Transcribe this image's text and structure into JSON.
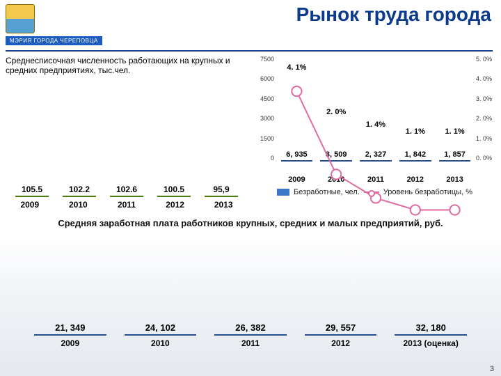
{
  "header": {
    "title": "Рынок труда города",
    "badge": "МЭРИЯ ГОРОДА ЧЕРЕПОВЦА",
    "title_color": "#0b3b8a",
    "rule_color": "#1b3f8a"
  },
  "employees_chart": {
    "caption": "Среднесписочная численность работающих на крупных и средних предприятиях, тыс.чел.",
    "type": "bar",
    "categories": [
      "2009",
      "2010",
      "2011",
      "2012",
      "2013"
    ],
    "values": [
      105.5,
      102.2,
      102.6,
      100.5,
      95.9
    ],
    "value_labels": [
      "105.5",
      "102.2",
      "102.6",
      "100.5",
      "95,9"
    ],
    "ylim": [
      90,
      106
    ],
    "bar_fill": "#6aa521",
    "bar_border": "#4c7d12",
    "label_fontsize": 12,
    "label_weight": 700
  },
  "unemployment_chart": {
    "type": "bar+line",
    "categories": [
      "2009",
      "2010",
      "2011",
      "2012",
      "2013"
    ],
    "bars_values": [
      6935,
      3509,
      2327,
      1842,
      1857
    ],
    "bars_labels": [
      "6, 935",
      "3, 509",
      "2, 327",
      "1, 842",
      "1, 857"
    ],
    "line_values_pct": [
      4.1,
      2.0,
      1.4,
      1.1,
      1.1
    ],
    "line_labels": [
      "4. 1%",
      "2. 0%",
      "1. 4%",
      "1. 1%",
      "1. 1%"
    ],
    "y_left_ticks": [
      "7500",
      "6000",
      "4500",
      "3000",
      "1500",
      "0"
    ],
    "y_right_ticks": [
      "5. 0%",
      "4. 0%",
      "3. 0%",
      "2. 0%",
      "1. 0%",
      "0. 0%"
    ],
    "y_left_lim": [
      0,
      7500
    ],
    "y_right_lim": [
      0,
      5.0
    ],
    "bar_fill": "#3b77c9",
    "bar_border": "#274f8a",
    "line_color": "#e06aa0",
    "marker_fill": "#ffffff",
    "legend_bars": "Безработные, чел.",
    "legend_line": "Уровень безработицы, %"
  },
  "wage_chart": {
    "caption": "Средняя заработная плата работников крупных, средних и малых предприятий, руб.",
    "type": "bar",
    "categories": [
      "2009",
      "2010",
      "2011",
      "2012",
      "2013 (оценка)"
    ],
    "values": [
      21349,
      24102,
      26382,
      29557,
      32180
    ],
    "value_labels": [
      "21, 349",
      "24, 102",
      "26, 382",
      "29, 557",
      "32, 180"
    ],
    "ylim": [
      0,
      33000
    ],
    "bar_fill": "#3b77c9",
    "bar_border": "#274f8a",
    "label_fontsize": 13
  },
  "page_number": "3"
}
